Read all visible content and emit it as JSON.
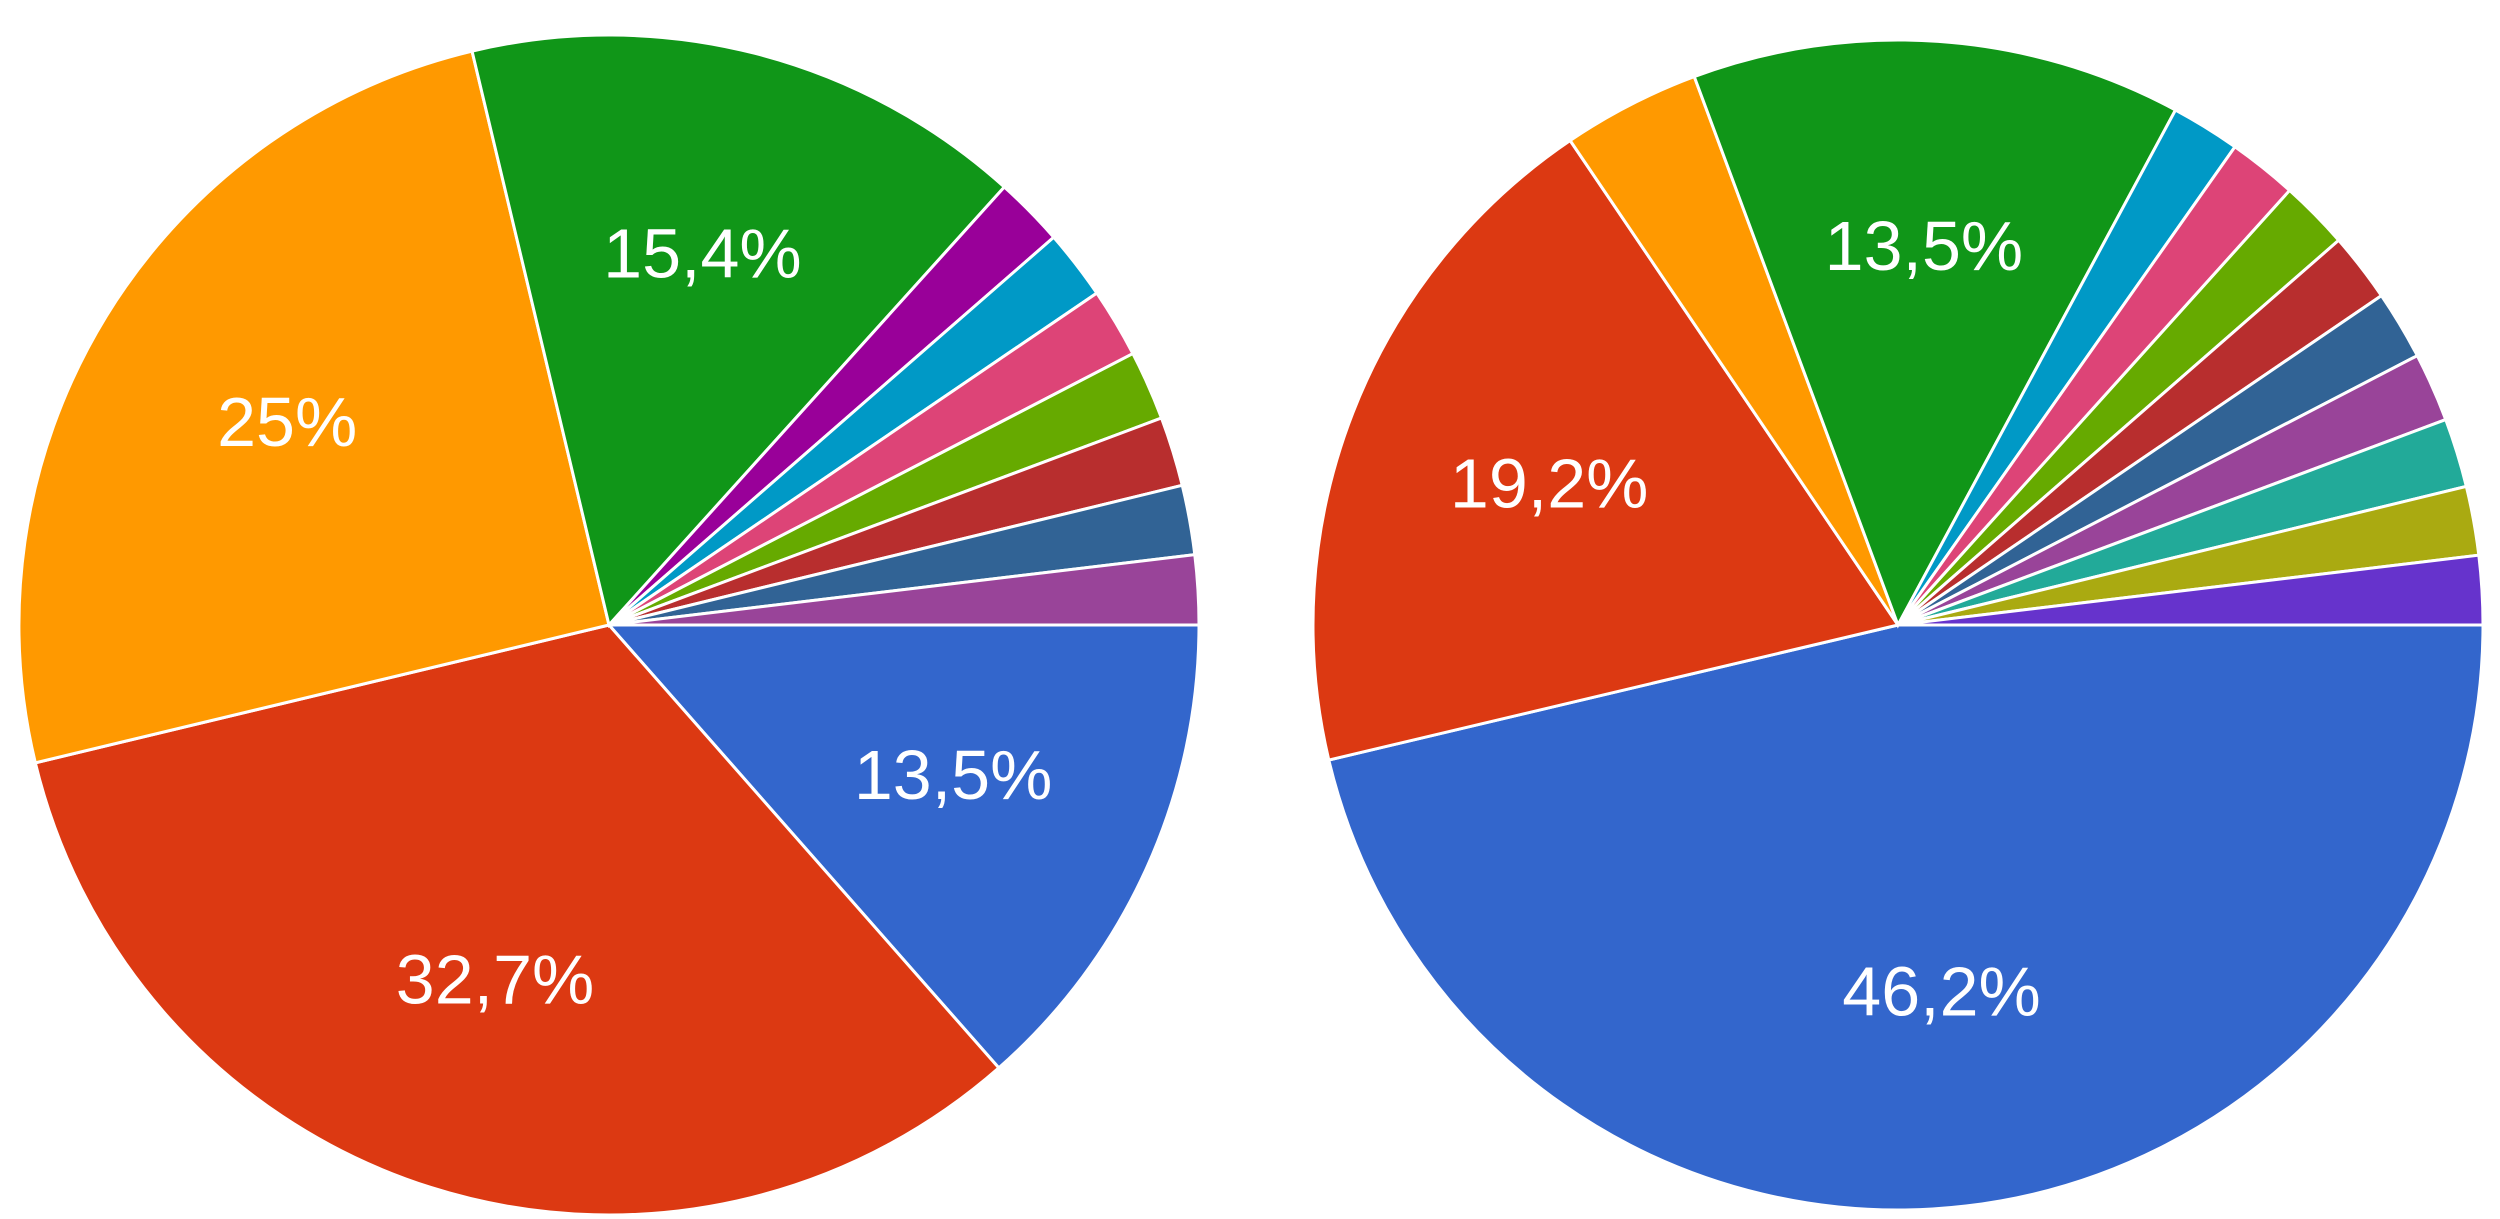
{
  "chart_data": [
    {
      "type": "pie",
      "values": [
        13.5,
        32.7,
        25,
        15.4,
        1.9,
        1.9,
        1.9,
        1.9,
        1.9,
        1.9,
        1.9
      ],
      "value_labels": [
        "13,5%",
        "32,7%",
        "25%",
        "15,4%",
        null,
        null,
        null,
        null,
        null,
        null,
        null
      ],
      "colors": [
        "#3366cc",
        "#dc3912",
        "#ff9900",
        "#109618",
        "#990099",
        "#0099c6",
        "#dd4477",
        "#66aa00",
        "#b82e2e",
        "#316395",
        "#994499"
      ]
    },
    {
      "type": "pie",
      "values": [
        46.2,
        19.2,
        3.8,
        13.5,
        1.9,
        1.9,
        1.9,
        1.9,
        1.9,
        1.9,
        1.9,
        1.9,
        1.9
      ],
      "value_labels": [
        "46,2%",
        "19,2%",
        null,
        "13,5%",
        null,
        null,
        null,
        null,
        null,
        null,
        null,
        null,
        null
      ],
      "colors": [
        "#3366cc",
        "#dc3912",
        "#ff9900",
        "#109618",
        "#0099c6",
        "#dd4477",
        "#66aa00",
        "#b82e2e",
        "#316395",
        "#994499",
        "#22aa99",
        "#aaaa11",
        "#6633cc"
      ]
    }
  ]
}
